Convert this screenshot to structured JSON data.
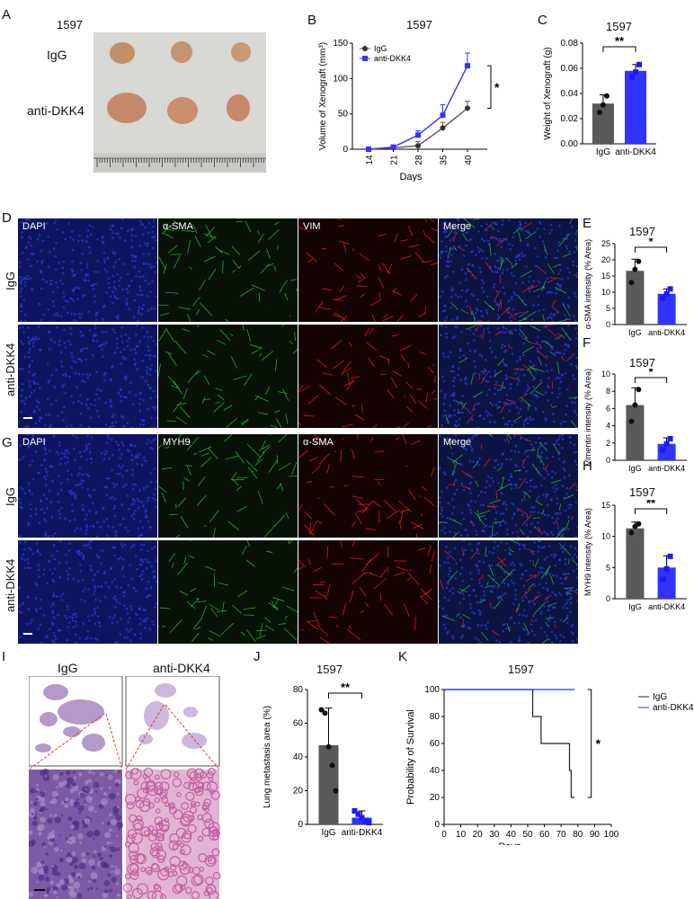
{
  "panels": {
    "A": "A",
    "B": "B",
    "C": "C",
    "D": "D",
    "E": "E",
    "F": "F",
    "G": "G",
    "H": "H",
    "I": "I",
    "J": "J",
    "K": "K"
  },
  "sample": "1597",
  "panelA": {
    "row1": "IgG",
    "row2": "anti-DKK4"
  },
  "panelD": {
    "channels": [
      "DAPI",
      "α-SMA",
      "VIM",
      "Merge"
    ],
    "rows": [
      "IgG",
      "anti-DKK4"
    ]
  },
  "panelG": {
    "channels": [
      "DAPI",
      "MYH9",
      "α-SMA",
      "Merge"
    ],
    "rows": [
      "IgG",
      "anti-DKK4"
    ]
  },
  "panelI": {
    "cols": [
      "IgG",
      "anti-DKK4"
    ]
  },
  "colors": {
    "igg": "#595959",
    "anti": "#3333ff",
    "blueMicro": "#1b1fa8",
    "red": "#ff2020",
    "green": "#2ecc2e"
  },
  "chart_data": [
    {
      "id": "B",
      "type": "line",
      "title": "1597",
      "xlabel": "Days",
      "ylabel": "Volume of Xenograft (mm³)",
      "x": [
        14,
        21,
        28,
        35,
        40
      ],
      "ylim": [
        0,
        150
      ],
      "yticks": [
        0,
        50,
        100,
        150
      ],
      "series": [
        {
          "name": "IgG",
          "values": [
            0,
            2,
            5,
            30,
            58
          ],
          "err": [
            0,
            1,
            6,
            8,
            10
          ]
        },
        {
          "name": "anti-DKK4",
          "values": [
            0,
            3,
            20,
            48,
            118
          ],
          "err": [
            0,
            2,
            6,
            15,
            18
          ]
        }
      ],
      "annotation": "*"
    },
    {
      "id": "C",
      "type": "bar",
      "title": "1597",
      "ylabel": "Weight of Xenograft (g)",
      "categories": [
        "IgG",
        "anti-DKK4"
      ],
      "values": [
        0.032,
        0.058
      ],
      "err": [
        0.007,
        0.005
      ],
      "points": [
        [
          0.025,
          0.031,
          0.038
        ],
        [
          0.053,
          0.057,
          0.063
        ]
      ],
      "ylim": [
        0,
        0.08
      ],
      "yticks": [
        "0.00",
        "0.02",
        "0.04",
        "0.06",
        "0.08"
      ],
      "annotation": "**"
    },
    {
      "id": "E",
      "type": "bar",
      "title": "1597",
      "ylabel": "α-SMA intensity (% Area)",
      "categories": [
        "IgG",
        "anti-DKK4"
      ],
      "values": [
        16.6,
        9.5
      ],
      "err": [
        3.6,
        1.5
      ],
      "points": [
        [
          13,
          17,
          19.5
        ],
        [
          8.2,
          9.5,
          11
        ]
      ],
      "ylim": [
        0,
        25
      ],
      "yticks": [
        "0",
        "5",
        "10",
        "15",
        "20",
        "25"
      ],
      "annotation": "*"
    },
    {
      "id": "F",
      "type": "bar",
      "title": "1597",
      "ylabel": "Vimentin intensity (% Area)",
      "categories": [
        "IgG",
        "anti-DKK4"
      ],
      "values": [
        6.4,
        1.9
      ],
      "err": [
        2.0,
        0.7
      ],
      "points": [
        [
          4.5,
          6.4,
          8.2
        ],
        [
          1.2,
          1.9,
          2.5
        ]
      ],
      "ylim": [
        0,
        10
      ],
      "yticks": [
        "0",
        "2",
        "4",
        "6",
        "8",
        "10"
      ],
      "annotation": "*"
    },
    {
      "id": "H",
      "type": "bar",
      "title": "1597",
      "ylabel": "MYH9 intensity (% Area)",
      "categories": [
        "IgG",
        "anti-DKK4"
      ],
      "values": [
        11.3,
        5.0
      ],
      "err": [
        1.0,
        1.9
      ],
      "points": [
        [
          10.6,
          11.6,
          12.0
        ],
        [
          3.1,
          4.8,
          6.8
        ]
      ],
      "ylim": [
        0,
        15
      ],
      "yticks": [
        "0",
        "5",
        "10",
        "15"
      ],
      "annotation": "**"
    },
    {
      "id": "J",
      "type": "bar",
      "title": "1597",
      "ylabel": "Lung metastasis area (%)",
      "categories": [
        "IgG",
        "anti-DKK4"
      ],
      "values": [
        47,
        4
      ],
      "err": [
        22,
        4
      ],
      "points": [
        [
          68,
          66,
          46,
          35,
          20
        ],
        [
          8,
          6,
          4,
          2,
          1
        ]
      ],
      "ylim": [
        0,
        80
      ],
      "yticks": [
        "0",
        "20",
        "40",
        "60",
        "80"
      ],
      "annotation": "**"
    },
    {
      "id": "K",
      "type": "line",
      "title": "1597",
      "xlabel": "Days",
      "ylabel": "Probability of Survival",
      "xlim": [
        0,
        100
      ],
      "ylim": [
        0,
        100
      ],
      "xticks": [
        "0",
        "10",
        "20",
        "30",
        "40",
        "50",
        "60",
        "70",
        "80",
        "90",
        "100"
      ],
      "yticks": [
        "0",
        "20",
        "40",
        "60",
        "80",
        "100"
      ],
      "series": [
        {
          "name": "IgG",
          "x": [
            0,
            53,
            53,
            58,
            58,
            62,
            62,
            75,
            75,
            76,
            76,
            78
          ],
          "values": [
            100,
            100,
            80,
            80,
            60,
            60,
            60,
            60,
            40,
            40,
            20,
            20
          ]
        },
        {
          "name": "anti-DKK4",
          "x": [
            0,
            78
          ],
          "values": [
            100,
            100
          ]
        }
      ],
      "annotation": "*"
    }
  ]
}
